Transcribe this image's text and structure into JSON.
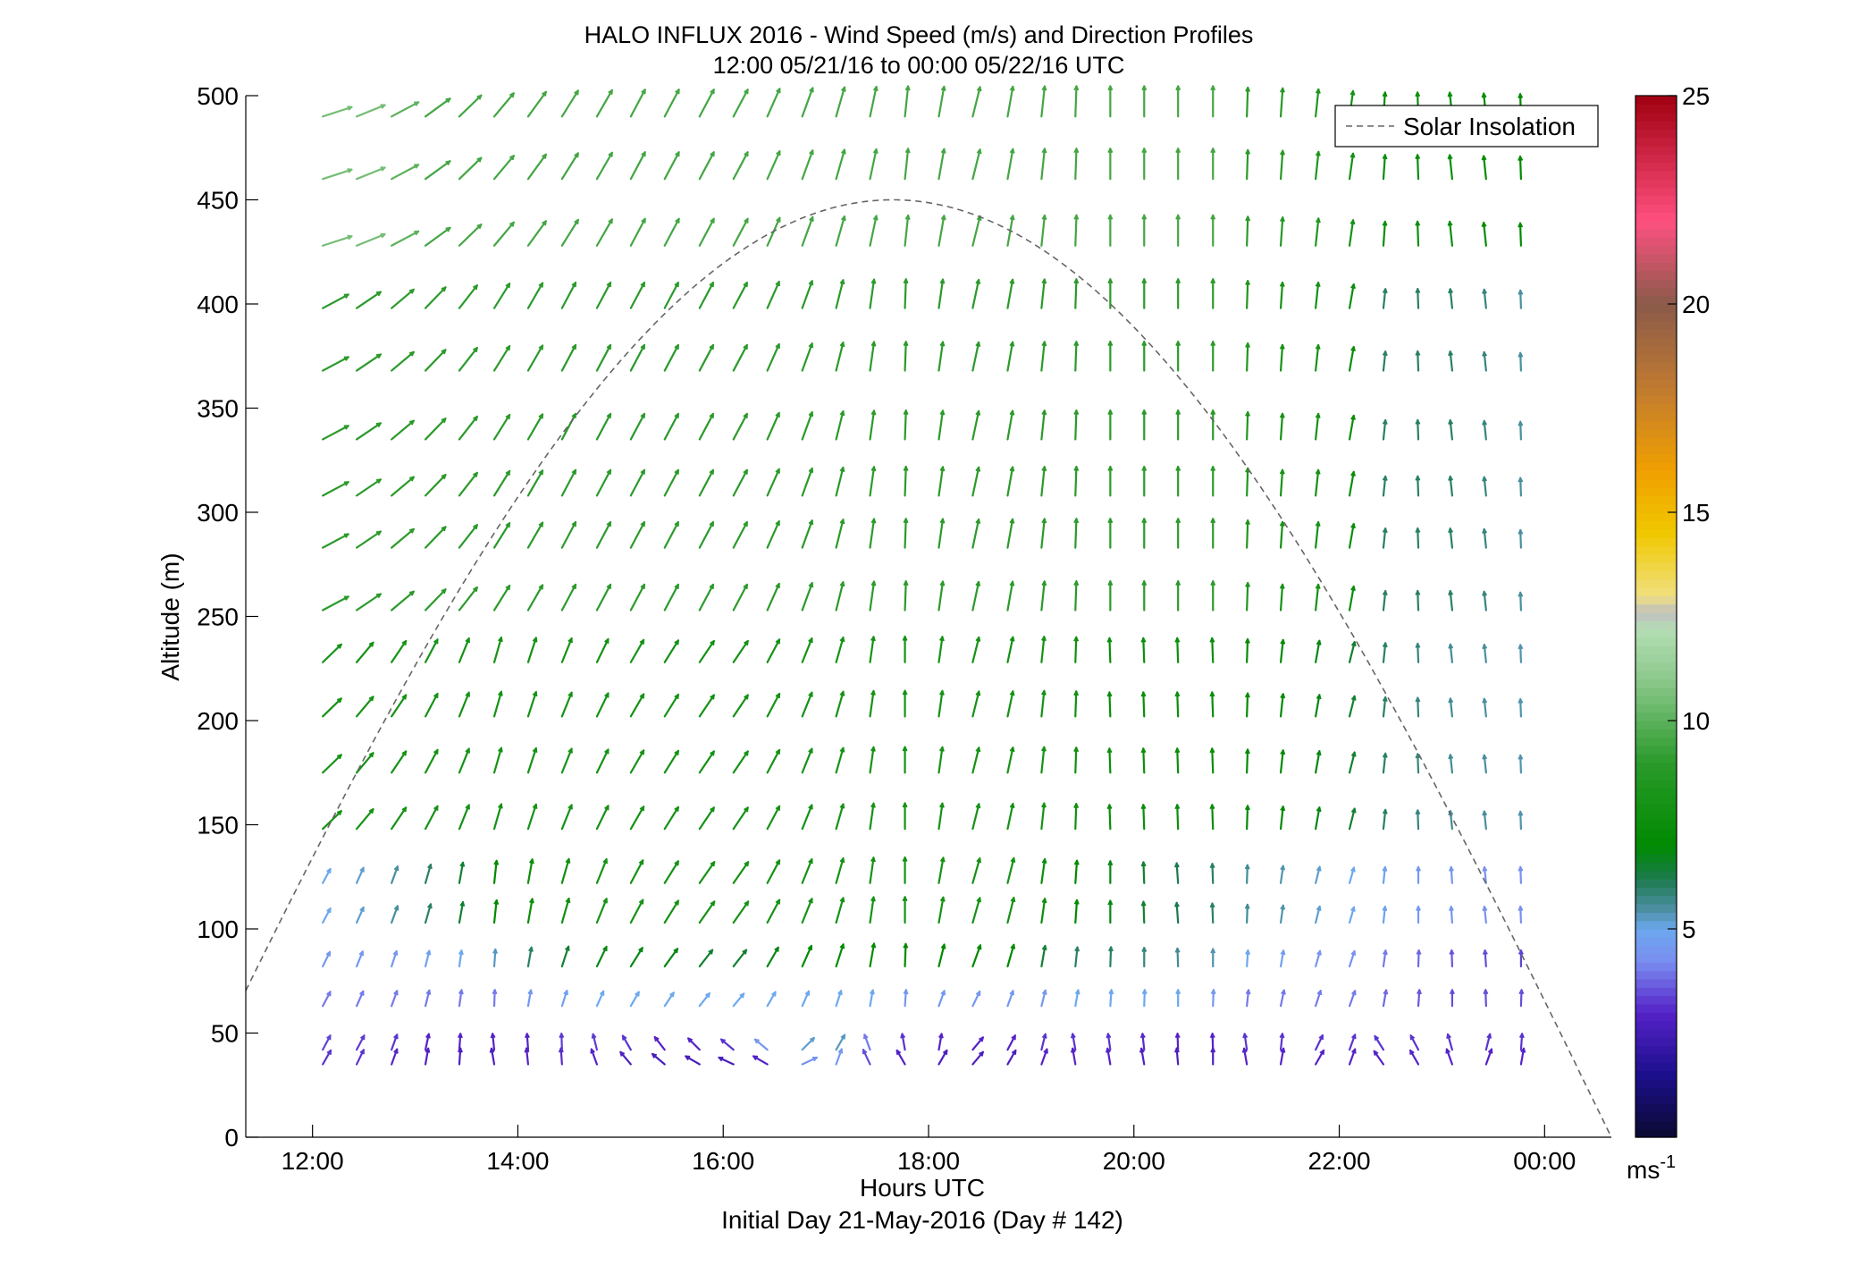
{
  "chart_data": {
    "type": "quiver",
    "title": "HALO INFLUX 2016 - Wind Speed (m/s) and Direction Profiles",
    "subtitle": "12:00 05/21/16 to 00:00 05/22/16  UTC",
    "xlabel": "Hours UTC",
    "xlabel2": "Initial Day 21-May-2016 (Day # 142)",
    "ylabel": "Altitude (m)",
    "x_range_hours": [
      11.35,
      24.65
    ],
    "xlim": [
      "11:21",
      "24:39"
    ],
    "ylim": [
      0,
      500
    ],
    "x_tick_hours": [
      12,
      14,
      16,
      18,
      20,
      22,
      24
    ],
    "x_tick_labels": [
      "12:00",
      "14:00",
      "16:00",
      "18:00",
      "20:00",
      "22:00",
      "00:00"
    ],
    "y_ticks": [
      0,
      50,
      100,
      150,
      200,
      250,
      300,
      350,
      400,
      450,
      500
    ],
    "y_tick_labels": [
      "0",
      "50",
      "100",
      "150",
      "200",
      "250",
      "300",
      "350",
      "400",
      "450",
      "500"
    ],
    "legend": {
      "entries": [
        "Solar Insolation"
      ],
      "position": "top-right",
      "line_style": "dashed",
      "color": "#666666"
    },
    "colorbar": {
      "min": 0,
      "max": 25,
      "ticks": [
        5,
        10,
        15,
        20,
        25
      ],
      "tick_labels": [
        "5",
        "10",
        "15",
        "20",
        "25"
      ],
      "unit": "ms",
      "unit_exp": "-1",
      "colormap": [
        [
          0,
          "#0a0a30"
        ],
        [
          1.5,
          "#1c0f8c"
        ],
        [
          3,
          "#5522c8"
        ],
        [
          4.2,
          "#7a8cf0"
        ],
        [
          5,
          "#6ca8ee"
        ],
        [
          5.5,
          "#4a8ea0"
        ],
        [
          6.2,
          "#1c7a4e"
        ],
        [
          7,
          "#008a00"
        ],
        [
          9,
          "#2a9a2a"
        ],
        [
          11,
          "#8cc88c"
        ],
        [
          12.2,
          "#b4deb4"
        ],
        [
          12.6,
          "#c0c0c0"
        ],
        [
          13,
          "#f0e080"
        ],
        [
          14.5,
          "#f0c800"
        ],
        [
          16,
          "#f0a000"
        ],
        [
          18,
          "#c07a30"
        ],
        [
          20,
          "#8a5a4a"
        ],
        [
          22,
          "#ff5080"
        ],
        [
          25,
          "#a00010"
        ]
      ]
    },
    "wind_field": {
      "note": "speed in m/s; direction in degrees the arrow points, measured counterclockwise from +x (east)",
      "altitudes_m": [
        35,
        42,
        63,
        82,
        103,
        122,
        148,
        175,
        202,
        228,
        253,
        283,
        308,
        335,
        368,
        398,
        428,
        460,
        490
      ],
      "time_columns_hours": [
        12.1,
        12.43,
        12.77,
        13.1,
        13.43,
        13.77,
        14.1,
        14.43,
        14.77,
        15.1,
        15.43,
        15.77,
        16.1,
        16.43,
        16.77,
        17.1,
        17.43,
        17.77,
        18.1,
        18.43,
        18.77,
        19.1,
        19.43,
        19.77,
        20.1,
        20.43,
        20.77,
        21.1,
        21.43,
        21.77,
        22.1,
        22.43,
        22.77,
        23.1,
        23.43,
        23.77
      ],
      "profiles": [
        {
          "alt_max": 40,
          "speed": [
            3.2,
            3.2,
            3.0,
            2.9,
            2.8,
            2.8,
            3.0,
            3.1,
            3.0,
            2.8,
            2.6,
            2.6,
            2.7,
            2.9,
            4.4,
            4.6,
            3.5,
            3.0,
            2.8,
            2.8,
            2.8,
            3.0,
            3.0,
            3.0,
            2.9,
            2.8,
            2.8,
            3.0,
            3.0,
            3.0,
            3.0,
            3.0,
            3.0,
            3.0,
            3.0,
            3.0
          ],
          "dir_deg": [
            60,
            64,
            70,
            80,
            86,
            100,
            96,
            94,
            110,
            130,
            140,
            150,
            155,
            150,
            25,
            70,
            115,
            120,
            60,
            50,
            60,
            70,
            100,
            100,
            100,
            95,
            90,
            100,
            80,
            60,
            70,
            125,
            120,
            110,
            70,
            80
          ]
        },
        {
          "alt_max": 60,
          "speed": [
            3.4,
            3.3,
            3.2,
            3.0,
            3.0,
            3.0,
            3.0,
            3.3,
            3.3,
            3.2,
            3.0,
            3.0,
            3.2,
            4.5,
            5.2,
            5.3,
            4.0,
            3.2,
            3.0,
            3.0,
            3.0,
            3.2,
            3.2,
            3.2,
            3.1,
            3.0,
            3.0,
            3.2,
            3.2,
            3.2,
            3.2,
            3.2,
            3.2,
            3.2,
            3.2,
            3.2
          ],
          "dir_deg": [
            62,
            62,
            70,
            78,
            86,
            96,
            94,
            92,
            104,
            120,
            128,
            135,
            140,
            140,
            45,
            60,
            110,
            100,
            80,
            50,
            62,
            76,
            100,
            98,
            96,
            92,
            92,
            98,
            84,
            64,
            70,
            122,
            118,
            106,
            76,
            86
          ]
        },
        {
          "alt_max": 70,
          "speed": [
            4.0,
            4.0,
            4.0,
            4.0,
            4.0,
            4.0,
            4.5,
            4.8,
            5.0,
            5.0,
            5.0,
            5.0,
            5.0,
            5.0,
            5.0,
            5.0,
            5.0,
            4.5,
            4.5,
            4.5,
            4.5,
            4.5,
            5.0,
            5.0,
            5.0,
            5.0,
            4.5,
            4.0,
            4.0,
            4.0,
            4.0,
            3.8,
            3.6,
            3.5,
            3.5,
            3.5
          ],
          "dir_deg": [
            62,
            66,
            70,
            76,
            82,
            88,
            80,
            72,
            66,
            60,
            56,
            52,
            50,
            60,
            66,
            72,
            80,
            86,
            70,
            64,
            70,
            76,
            80,
            86,
            88,
            90,
            88,
            84,
            78,
            72,
            70,
            80,
            86,
            90,
            92,
            88
          ]
        },
        {
          "alt_max": 90,
          "speed": [
            4.5,
            4.5,
            4.5,
            4.8,
            5.0,
            5.3,
            6.0,
            6.5,
            6.8,
            6.8,
            6.8,
            6.5,
            6.5,
            6.8,
            7.0,
            7.2,
            7.2,
            7.0,
            7.0,
            7.0,
            7.0,
            6.5,
            6.0,
            6.0,
            5.8,
            5.6,
            5.4,
            5.0,
            4.8,
            4.5,
            4.3,
            4.0,
            3.8,
            3.6,
            3.5,
            3.4
          ],
          "dir_deg": [
            64,
            68,
            72,
            76,
            82,
            86,
            80,
            72,
            64,
            58,
            54,
            52,
            52,
            60,
            66,
            72,
            80,
            88,
            76,
            70,
            74,
            80,
            84,
            88,
            90,
            92,
            90,
            86,
            80,
            74,
            72,
            82,
            88,
            92,
            94,
            90
          ]
        },
        {
          "alt_max": 140,
          "speed": [
            5.0,
            5.2,
            5.5,
            6.0,
            6.5,
            7.0,
            7.5,
            7.8,
            8.0,
            8.0,
            8.0,
            8.0,
            8.0,
            8.0,
            8.0,
            8.0,
            8.0,
            8.0,
            8.0,
            8.0,
            8.0,
            7.5,
            7.0,
            6.8,
            6.5,
            6.2,
            6.0,
            5.6,
            5.4,
            5.2,
            5.0,
            4.8,
            4.6,
            4.5,
            4.4,
            4.3
          ],
          "dir_deg": [
            62,
            66,
            70,
            74,
            80,
            84,
            80,
            74,
            68,
            62,
            58,
            55,
            55,
            62,
            68,
            74,
            82,
            90,
            80,
            74,
            76,
            82,
            86,
            90,
            92,
            94,
            92,
            88,
            82,
            76,
            74,
            84,
            90,
            94,
            96,
            92
          ]
        },
        {
          "alt_max": 240,
          "speed": [
            8.0,
            8.0,
            8.0,
            8.0,
            8.0,
            8.0,
            8.0,
            8.0,
            8.0,
            8.0,
            8.0,
            8.0,
            8.0,
            8.0,
            8.0,
            8.0,
            8.0,
            8.0,
            8.0,
            8.0,
            8.0,
            8.0,
            7.8,
            7.5,
            7.5,
            7.5,
            7.5,
            7.2,
            7.0,
            6.8,
            6.5,
            6.0,
            5.8,
            5.6,
            5.5,
            5.4
          ],
          "dir_deg": [
            44,
            50,
            56,
            62,
            68,
            74,
            72,
            68,
            64,
            60,
            58,
            56,
            56,
            62,
            68,
            74,
            82,
            90,
            82,
            76,
            78,
            84,
            88,
            92,
            92,
            92,
            92,
            88,
            84,
            80,
            76,
            84,
            92,
            96,
            96,
            92
          ]
        },
        {
          "alt_max": 420,
          "speed": [
            9.0,
            9.0,
            9.0,
            9.0,
            9.0,
            9.0,
            9.0,
            9.0,
            9.0,
            9.0,
            9.0,
            9.0,
            9.0,
            9.0,
            9.0,
            9.0,
            9.0,
            9.0,
            9.0,
            9.0,
            9.0,
            9.0,
            9.0,
            9.0,
            9.0,
            9.0,
            9.0,
            8.5,
            8.0,
            8.0,
            7.5,
            6.0,
            6.0,
            6.0,
            5.8,
            5.5
          ],
          "dir_deg": [
            28,
            34,
            40,
            46,
            52,
            58,
            60,
            62,
            62,
            62,
            62,
            62,
            62,
            66,
            70,
            76,
            82,
            88,
            82,
            78,
            80,
            84,
            88,
            90,
            90,
            90,
            90,
            88,
            86,
            84,
            80,
            84,
            92,
            96,
            96,
            92
          ]
        },
        {
          "alt_max": 500,
          "speed": [
            10.5,
            10.5,
            10.0,
            9.5,
            9.5,
            9.5,
            9.5,
            9.5,
            9.5,
            9.5,
            9.5,
            9.5,
            9.5,
            9.5,
            9.5,
            9.5,
            9.5,
            9.5,
            9.5,
            9.5,
            9.5,
            9.5,
            9.5,
            9.5,
            9.5,
            9.5,
            9.5,
            9.0,
            8.8,
            8.5,
            8.0,
            7.5,
            7.5,
            7.5,
            7.2,
            7.0
          ],
          "dir_deg": [
            18,
            22,
            28,
            36,
            44,
            50,
            54,
            58,
            60,
            62,
            62,
            62,
            62,
            66,
            70,
            74,
            78,
            84,
            80,
            76,
            80,
            84,
            88,
            90,
            90,
            90,
            90,
            88,
            86,
            84,
            82,
            86,
            92,
            96,
            96,
            92
          ]
        }
      ]
    },
    "solar_insolation": {
      "peak_hour": 17.65,
      "peak_altitude_m": 450,
      "zero_hours": [
        10.65,
        24.65
      ]
    }
  }
}
